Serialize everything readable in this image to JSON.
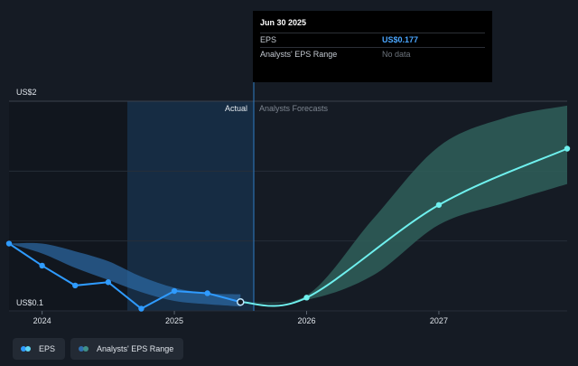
{
  "tooltip": {
    "date": "Jun 30 2025",
    "rows": [
      {
        "label": "EPS",
        "value": "US$0.177"
      },
      {
        "label": "Analysts' EPS Range",
        "value": "No data"
      }
    ]
  },
  "legend": [
    {
      "label": "EPS",
      "colors": [
        "#2f9bff",
        "#5fd6f4"
      ]
    },
    {
      "label": "Analysts' EPS Range",
      "colors": [
        "#2f6fb0",
        "#3f8f88"
      ]
    }
  ],
  "colors": {
    "background": "#151b24",
    "actual_shade": "#173a5c",
    "eps_line": "#2f9bff",
    "forecast_line": "#6ff0ee",
    "actual_range": "#2c6ba6",
    "forecast_range": "#2f5f5a"
  },
  "chart_data": {
    "type": "line",
    "y_tick_labels": [
      "US$2",
      "US$0.1"
    ],
    "ylim": [
      0.1,
      2.0
    ],
    "x_tick_labels": [
      "2024",
      "2025",
      "2026",
      "2027"
    ],
    "xlim": [
      2023.75,
      2027.97
    ],
    "divider_x": 2025.5,
    "regions": {
      "actual": "Actual",
      "forecast": "Analysts Forecasts"
    },
    "grid": true,
    "series": [
      {
        "name": "EPS",
        "x": [
          2023.75,
          2024.0,
          2024.25,
          2024.5,
          2024.75,
          2025.0,
          2025.25,
          2025.5
        ],
        "values": [
          0.71,
          0.51,
          0.33,
          0.36,
          0.12,
          0.28,
          0.26,
          0.18
        ]
      },
      {
        "name": "EPS Forecast",
        "x": [
          2025.5,
          2026.0,
          2027.0,
          2027.97
        ],
        "values": [
          0.18,
          0.22,
          1.06,
          1.57
        ]
      }
    ],
    "ranges": [
      {
        "name": "Analysts' EPS Range (actual period)",
        "x": [
          2023.75,
          2024.0,
          2024.25,
          2024.5,
          2024.75,
          2025.0,
          2025.25,
          2025.5
        ],
        "low": [
          0.71,
          0.62,
          0.49,
          0.38,
          0.27,
          0.19,
          0.16,
          0.14
        ],
        "high": [
          0.71,
          0.71,
          0.64,
          0.55,
          0.41,
          0.31,
          0.26,
          0.25
        ]
      },
      {
        "name": "Analysts' EPS Range (forecast)",
        "x": [
          2025.5,
          2026.0,
          2026.5,
          2027.0,
          2027.5,
          2027.97
        ],
        "low": [
          0.18,
          0.2,
          0.42,
          0.88,
          1.08,
          1.25
        ],
        "high": [
          0.18,
          0.24,
          0.93,
          1.59,
          1.85,
          1.96
        ]
      }
    ]
  }
}
